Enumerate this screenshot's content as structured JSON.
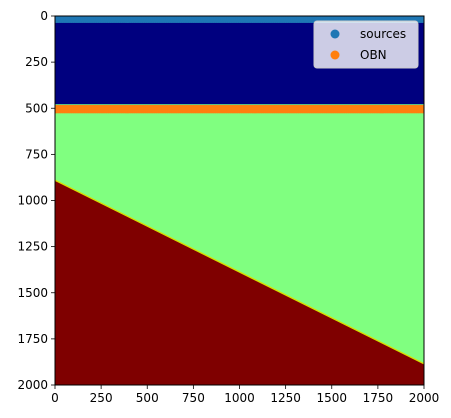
{
  "chart_data": {
    "type": "heatmap",
    "title": "",
    "xlabel": "",
    "ylabel": "",
    "xlim": [
      0,
      2000
    ],
    "ylim": [
      2000,
      0
    ],
    "y_inverted": true,
    "grid": false,
    "x_ticks": [
      0,
      250,
      500,
      750,
      1000,
      1250,
      1500,
      1750,
      2000
    ],
    "y_ticks": [
      0,
      250,
      500,
      750,
      1000,
      1250,
      1500,
      1750,
      2000
    ],
    "colormap": "jet",
    "layers": [
      {
        "color": "#00007f",
        "top_left": 0,
        "top_right": 0,
        "bottom_left": 480,
        "bottom_right": 480
      },
      {
        "color": "#80ff80",
        "top_left": 480,
        "top_right": 480,
        "bottom_left": 890,
        "bottom_right": 1885
      },
      {
        "color": "#7f0000",
        "top_left": 890,
        "top_right": 1885,
        "bottom_left": 2000,
        "bottom_right": 2000
      }
    ],
    "series": [
      {
        "name": "sources",
        "type": "scatter",
        "color": "#1f77b4",
        "y": 15,
        "x_start": 0,
        "x_end": 2000,
        "x_step": 10
      },
      {
        "name": "OBN",
        "type": "scatter",
        "color": "#ff7f0e",
        "y": 505,
        "x_start": 0,
        "x_end": 2000,
        "x_step": 10
      }
    ],
    "legend": {
      "position": "top-right"
    }
  }
}
